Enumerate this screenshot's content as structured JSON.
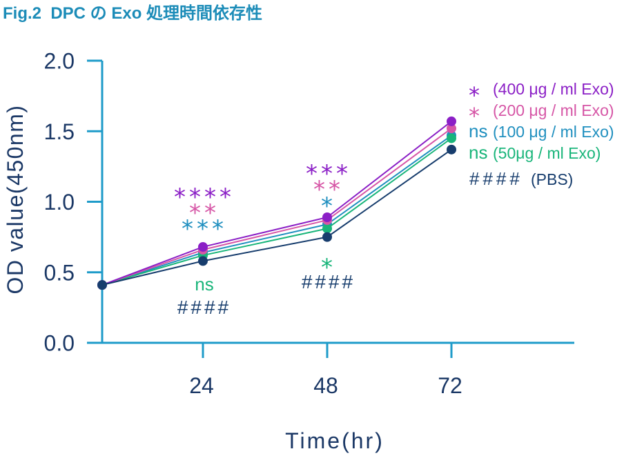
{
  "colors": {
    "title": "#1c8cb8",
    "axis": "#1e9bc9",
    "text": "#1b3866"
  },
  "chart_data": {
    "type": "line",
    "title": "Fig.2  DPC の Exo 処理時間依存性",
    "xlabel": "Time(hr)",
    "ylabel": "OD value(450nm)",
    "x": [
      0,
      24,
      48,
      72
    ],
    "xticks": [
      "24",
      "48",
      "72"
    ],
    "yticks": [
      "0.0",
      "0.5",
      "1.0",
      "1.5",
      "2.0"
    ],
    "ylim": [
      0,
      2.0
    ],
    "grid": false,
    "legend_position": "top-right",
    "series": [
      {
        "name": "(400 μg / ml Exo)",
        "legend_mark": "*",
        "color": "#8b1fc6",
        "values": [
          0.41,
          0.68,
          0.89,
          1.57
        ]
      },
      {
        "name": "(200 μg / ml Exo)",
        "legend_mark": "*",
        "color": "#d656a6",
        "values": [
          0.41,
          0.66,
          0.87,
          1.52
        ]
      },
      {
        "name": "(100 μg / ml Exo)",
        "legend_mark": "ns",
        "color": "#1f8fbf",
        "values": [
          0.41,
          0.64,
          0.84,
          1.47
        ]
      },
      {
        "name": "(50μg / ml Exo)",
        "legend_mark": "ns",
        "color": "#19b57a",
        "values": [
          0.41,
          0.62,
          0.81,
          1.45
        ]
      },
      {
        "name": "(PBS)",
        "legend_mark": "####",
        "color": "#173d6d",
        "values": [
          0.41,
          0.58,
          0.75,
          1.37
        ]
      }
    ],
    "annotations": [
      {
        "x": 24,
        "labels": [
          "****",
          "**",
          "***",
          "ns",
          "####"
        ]
      },
      {
        "x": 48,
        "labels": [
          "***",
          "**",
          "*",
          "*",
          "####"
        ]
      }
    ]
  }
}
